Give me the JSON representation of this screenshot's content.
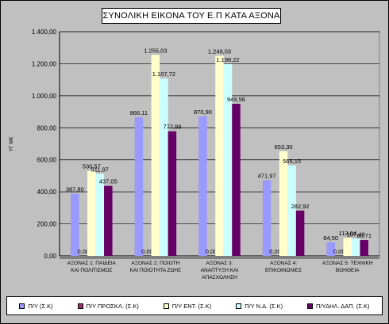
{
  "chart_data": {
    "type": "bar",
    "title": "ΣΥΝΟΛΙΚΗ ΕΙΚΟΝΑ ΤΟΥ Ε.Π ΚΑΤΑ ΑΞΟΝΑ",
    "ylabel": "ΥΓ Μ€",
    "xlabel": "",
    "ylim": [
      0,
      1400
    ],
    "yticks": [
      "0,00",
      "200,00",
      "400,00",
      "600,00",
      "800,00",
      "1.000,00",
      "1.200,00",
      "1.400,00"
    ],
    "grid": true,
    "legend_position": "bottom",
    "categories": [
      [
        "ΑΞΟΝΑΣ 1: ΠΑΙΔΕΙΑ",
        "ΚΑΙ ΠΟΛΙΤΙΣΜΟΣ"
      ],
      [
        "ΑΞΟΝΑΣ 2: ΠΟΙΟΤΗ",
        "ΚΑΙ ΠΟΙΟΤΗΤΑ ΖΩΗΣ"
      ],
      [
        "ΑΞΟΝΑΣ 3:",
        "ΑΝΑΠΤΥΞΗ ΚΑΙ",
        "ΑΠΑΣΧΟΛΗΣΗ"
      ],
      [
        "ΑΞΟΝΑΣ 4:",
        "ΕΠΙΚΟΙΝΩΝΙΕΣ"
      ],
      [
        "ΑΞΟΝΑΣ 5: ΤΕΧΝΙΚΗ",
        "ΒΟΗΘΕΙΑ"
      ]
    ],
    "series": [
      {
        "name": "Π/Υ (Σ.Κ)",
        "color": "#9999ff",
        "values": [
          387.8,
          866.11,
          870.9,
          471.97,
          84.5
        ],
        "labels": [
          "387,80",
          "866,11",
          "870,90",
          "471,97",
          "84,50"
        ]
      },
      {
        "name": "Π/Υ ΠΡΟΣΚΛ. (Σ.Κ)",
        "color": "#993366",
        "values": [
          0,
          0,
          0,
          0,
          0
        ],
        "labels": [
          "0,00",
          "0,00",
          "0,00",
          "0,00",
          "0,00"
        ]
      },
      {
        "name": "Π/Υ ΕΝΤ. (Σ.Κ)",
        "color": "#ffffcc",
        "values": [
          530.57,
          1255.03,
          1249.03,
          653.3,
          113.04
        ],
        "labels": [
          "530,57",
          "1.255,03",
          "1.249,03",
          "653,30",
          "113,04"
        ]
      },
      {
        "name": "Π/Υ Ν.Δ. (Σ.Κ)",
        "color": "#ccffff",
        "values": [
          511.97,
          1107.72,
          1198.22,
          565.15,
          107.43
        ],
        "labels": [
          "511,97",
          "1.107,72",
          "1.198,22",
          "565,15",
          "107,43"
        ]
      },
      {
        "name": "Π/ΥΔΗΛ. ΔΑΠ. (Σ.Κ)",
        "color": "#660066",
        "values": [
          437.05,
          777.99,
          949.56,
          282.92,
          98.71
        ],
        "labels": [
          "437,05",
          "777,99",
          "949,56",
          "282,92",
          "98,71"
        ]
      }
    ]
  }
}
